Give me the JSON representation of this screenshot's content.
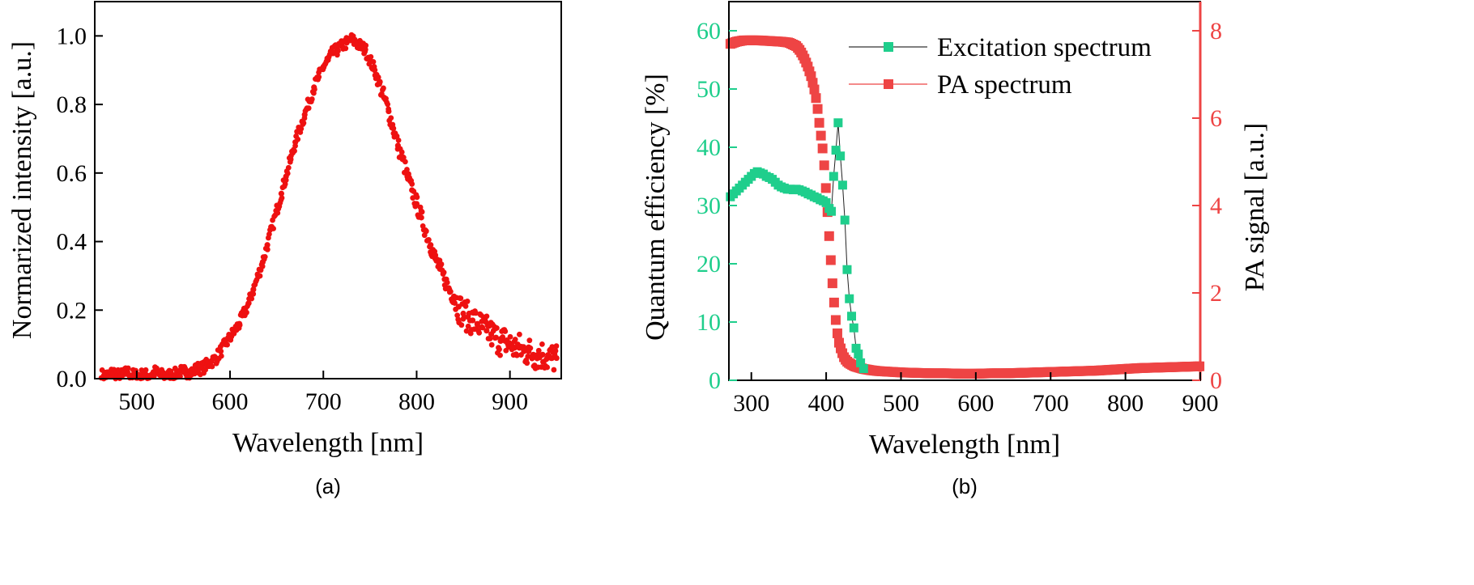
{
  "chart_data": [
    {
      "id": "a",
      "type": "scatter",
      "caption": "(a)",
      "xlabel": "Wavelength [nm]",
      "ylabel": "Normarized intensity [a.u.]",
      "xlim": [
        455,
        955
      ],
      "ylim": [
        0,
        1.1
      ],
      "xticks": [
        500,
        600,
        700,
        800,
        900
      ],
      "yticks": [
        0.0,
        0.2,
        0.4,
        0.6,
        0.8,
        1.0
      ],
      "ytick_labels": [
        "0.0",
        "0.2",
        "0.4",
        "0.6",
        "0.8",
        "1.0"
      ],
      "grid": false,
      "colors": {
        "marker": "#ee1111"
      },
      "series": [
        {
          "x": [
            465,
            470,
            475,
            480,
            485,
            490,
            495,
            500,
            505,
            510,
            515,
            520,
            525,
            530,
            535,
            540,
            545,
            550,
            555,
            560,
            565,
            570,
            575,
            580,
            585,
            590,
            595,
            600,
            605,
            610,
            615,
            620,
            625,
            630,
            635,
            640,
            645,
            650,
            655,
            660,
            665,
            670,
            675,
            680,
            685,
            690,
            695,
            700,
            705,
            710,
            715,
            720,
            725,
            730,
            735,
            740,
            745,
            750,
            755,
            760,
            765,
            770,
            775,
            780,
            785,
            790,
            795,
            800,
            805,
            810,
            815,
            820,
            825,
            830,
            835,
            840,
            845,
            850,
            855,
            860,
            865,
            870,
            875,
            880,
            885,
            890,
            895,
            900,
            905,
            910,
            915,
            920,
            925,
            930,
            935,
            940,
            945,
            950
          ],
          "values": [
            0.01,
            0.01,
            0.02,
            0.01,
            0.01,
            0.02,
            0.01,
            0.01,
            0.01,
            0.01,
            0.01,
            0.02,
            0.01,
            0.01,
            0.01,
            0.01,
            0.02,
            0.02,
            0.02,
            0.02,
            0.03,
            0.03,
            0.04,
            0.05,
            0.06,
            0.08,
            0.1,
            0.12,
            0.14,
            0.16,
            0.19,
            0.22,
            0.26,
            0.3,
            0.34,
            0.39,
            0.44,
            0.49,
            0.54,
            0.59,
            0.64,
            0.69,
            0.73,
            0.77,
            0.81,
            0.85,
            0.88,
            0.91,
            0.93,
            0.95,
            0.96,
            0.97,
            0.98,
            0.99,
            0.98,
            0.97,
            0.96,
            0.93,
            0.9,
            0.86,
            0.82,
            0.78,
            0.73,
            0.68,
            0.64,
            0.59,
            0.55,
            0.51,
            0.47,
            0.43,
            0.39,
            0.35,
            0.32,
            0.29,
            0.26,
            0.24,
            0.21,
            0.19,
            0.18,
            0.17,
            0.16,
            0.15,
            0.14,
            0.13,
            0.12,
            0.11,
            0.11,
            0.1,
            0.09,
            0.09,
            0.08,
            0.08,
            0.07,
            0.07,
            0.07,
            0.06,
            0.06,
            0.06
          ]
        }
      ]
    },
    {
      "id": "b",
      "type": "scatter",
      "caption": "(b)",
      "xlabel": "Wavelength [nm]",
      "ylabel_left": "Quantum efficiency [%]",
      "ylabel_right": "PA signal [a.u.]",
      "xlim": [
        270,
        900
      ],
      "ylim_left": [
        0,
        65
      ],
      "ylim_right": [
        0,
        8.667
      ],
      "xticks": [
        300,
        400,
        500,
        600,
        700,
        800,
        900
      ],
      "yticks_left": [
        0,
        10,
        20,
        30,
        40,
        50,
        60
      ],
      "yticks_right": [
        0,
        2,
        4,
        6,
        8
      ],
      "grid": false,
      "legend_position": "top-right",
      "colors": {
        "excitation": "#1fce8c",
        "pa": "#ee4444",
        "left_axis": "#1fce8c",
        "right_axis": "#ee4444"
      },
      "series": [
        {
          "name": "Excitation spectrum",
          "axis": "left",
          "x": [
            272,
            276,
            280,
            284,
            288,
            292,
            296,
            300,
            304,
            308,
            312,
            316,
            320,
            324,
            328,
            332,
            336,
            340,
            344,
            348,
            352,
            356,
            360,
            364,
            368,
            372,
            376,
            380,
            384,
            388,
            392,
            396,
            400,
            404,
            407,
            410,
            413,
            416,
            419,
            422,
            425,
            428,
            431,
            434,
            437,
            440,
            443,
            446,
            450
          ],
          "values": [
            31.5,
            32,
            32.5,
            33,
            33.5,
            34,
            34.5,
            35,
            35.5,
            35.8,
            35.6,
            35.4,
            35,
            34.8,
            34.5,
            34,
            33.5,
            33.2,
            33,
            32.8,
            32.8,
            32.7,
            32.8,
            32.7,
            32.5,
            32.3,
            32,
            31.8,
            31.5,
            31.3,
            31,
            30.8,
            30.5,
            29.5,
            29,
            35,
            39.5,
            44.2,
            38.5,
            33.5,
            27.5,
            19,
            14,
            11,
            9,
            5.5,
            4.5,
            3,
            2
          ]
        },
        {
          "name": "PA spectrum",
          "axis": "right",
          "x": [
            272,
            280,
            290,
            300,
            310,
            320,
            330,
            340,
            350,
            360,
            365,
            370,
            375,
            380,
            385,
            388,
            390,
            393,
            396,
            398,
            400,
            402,
            404,
            406,
            408,
            410,
            412,
            414,
            416,
            418,
            420,
            422,
            424,
            426,
            428,
            430,
            434,
            438,
            442,
            446,
            450,
            460,
            470,
            480,
            490,
            500,
            520,
            540,
            560,
            580,
            600,
            620,
            640,
            660,
            680,
            700,
            720,
            740,
            760,
            780,
            800,
            820,
            840,
            860,
            880,
            900
          ],
          "values": [
            7.7,
            7.75,
            7.78,
            7.78,
            7.78,
            7.77,
            7.76,
            7.75,
            7.73,
            7.65,
            7.55,
            7.4,
            7.2,
            6.95,
            6.6,
            6.3,
            6.0,
            5.6,
            5.2,
            4.8,
            4.3,
            3.8,
            3.3,
            2.8,
            2.3,
            1.9,
            1.5,
            1.2,
            0.95,
            0.8,
            0.7,
            0.6,
            0.52,
            0.47,
            0.43,
            0.4,
            0.36,
            0.32,
            0.3,
            0.28,
            0.26,
            0.23,
            0.21,
            0.2,
            0.19,
            0.18,
            0.17,
            0.16,
            0.16,
            0.15,
            0.15,
            0.16,
            0.16,
            0.17,
            0.18,
            0.19,
            0.2,
            0.21,
            0.22,
            0.24,
            0.26,
            0.28,
            0.29,
            0.3,
            0.31,
            0.32
          ]
        }
      ]
    }
  ]
}
